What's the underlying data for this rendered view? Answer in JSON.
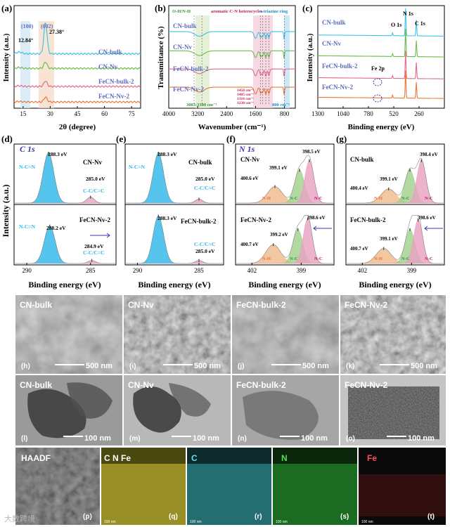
{
  "figure_name": "CN / FeCN characterization figure",
  "colors": {
    "cn_bulk": "#3ec3e6",
    "cn_nv": "#6dbb4a",
    "fecn_bulk_2": "#e06a8d",
    "fecn_nv_2": "#e8773a",
    "label_blue": "#5b6bbd",
    "peak_cyan": "#2cb6e8",
    "peak_pink": "#e8a0c0",
    "peak_green": "#9fd08a",
    "peak_orange": "#f1b98c"
  },
  "panel_a": {
    "letter": "(a)",
    "peak_labels": [
      "(100)",
      "(002)",
      "12.84°",
      "27.38°"
    ],
    "legend": [
      "CN-bulk",
      "CN-Nv",
      "FeCN-bulk-2",
      "FeCN-Nv-2"
    ]
  },
  "panel_b": {
    "letter": "(b)",
    "region_labels": [
      "O-H/N-H",
      "aromatic C-N heterocycles",
      "s-triazine ring"
    ],
    "band_notes": [
      "1458 cm⁻¹",
      "1405 cm⁻¹",
      "1316 cm⁻¹",
      "1230 cm⁻¹"
    ],
    "range_note": "3083-3300 cm⁻¹",
    "ring_note": "800 cm⁻¹",
    "legend": [
      "CN-bulk",
      "CN-Nv",
      "FeCN-bulk-2",
      "FeCN-Nv-2"
    ]
  },
  "panel_c": {
    "letter": "(c)",
    "peak_labels": [
      "N 1s",
      "O 1s",
      "C 1s",
      "Fe 2p"
    ],
    "legend": [
      "CN-bulk",
      "CN-Nv",
      "FeCN-bulk-2",
      "FeCN-Nv-2"
    ]
  },
  "panel_d": {
    "letter": "(d)",
    "core": "C 1s",
    "top": {
      "sample": "CN-Nv",
      "peak1": "288.3 eV",
      "peak2": "285.0 eV",
      "assign1": "N-C=N",
      "assign2": "C-C/C=C"
    },
    "bottom": {
      "sample": "FeCN-Nv-2",
      "peak1": "288.2 eV",
      "peak2": "284.9 eV",
      "assign1": "N-C=N",
      "assign2": "C-C/C=C"
    }
  },
  "panel_e": {
    "letter": "(e)",
    "top": {
      "sample": "CN-bulk",
      "peak1": "288.3 eV",
      "peak2": "285.0 eV",
      "assign1": "N-C=N",
      "assign2": "C-C/C=C"
    },
    "bottom": {
      "sample": "FeCN-bulk-2",
      "peak1": "288.3 eV",
      "peak2": "285.0 eV",
      "assign2": "C-C/C=C"
    }
  },
  "panel_f": {
    "letter": "(f)",
    "core": "N 1s",
    "top": {
      "sample": "CN-Nv",
      "p1": "400.6 eV",
      "p2": "399.1 eV",
      "p3": "398.5 eV",
      "a1": "N-H",
      "a2": "N-C",
      "a3": "N-C"
    },
    "bottom": {
      "sample": "FeCN-Nv-2",
      "p1": "400.7 eV",
      "p2": "399.2 eV",
      "p3": "398.6 eV",
      "a1": "N-H",
      "a2": "N-C",
      "a3": "N-C"
    }
  },
  "panel_g": {
    "letter": "(g)",
    "top": {
      "sample": "CN-bulk",
      "p1": "400.4 eV",
      "p2": "399.1 eV",
      "p3": "398.4 eV",
      "a1": "N-H",
      "a2": "N-C",
      "a3": "N-C"
    },
    "bottom": {
      "sample": "FeCN-bulk-2",
      "p1": "400.7 eV",
      "p2": "399.1 eV",
      "p3": "398.6 eV",
      "a1": "N-H",
      "a2": "N-C",
      "a3": "N-C"
    }
  },
  "xps_axis_label": "Binding energy (eV)",
  "intensity_label": "Intensity (a.u.)",
  "sem_row": {
    "labels": [
      "CN-bulk",
      "CN-Nv",
      "FeCN-bulk-2",
      "FeCN-Nv-2"
    ],
    "letters": [
      "(h)",
      "(i)",
      "(j)",
      "(k)"
    ],
    "scale": "500 nm"
  },
  "tem_row": {
    "labels": [
      "CN-bulk",
      "CN-Nv",
      "FeCN-bulk-2",
      "FeCN-Nv-2"
    ],
    "letters": [
      "(l)",
      "(m)",
      "(n)",
      "(o)"
    ],
    "scale": "100 nm"
  },
  "map_row": {
    "labels": [
      "HAADF",
      "C N Fe",
      "C",
      "N",
      "Fe"
    ],
    "letters": [
      "(p)",
      "(q)",
      "(r)",
      "(s)",
      "(t)"
    ],
    "scale": "100 nm",
    "watermark": "大数跨境"
  },
  "chart_data": [
    {
      "type": "line",
      "panel": "a",
      "xlabel": "2θ (degree)",
      "ylabel": "Intensity (a.u.)",
      "xlim": [
        10,
        80
      ],
      "xticks": [
        15,
        30,
        45,
        60,
        75
      ],
      "series": [
        {
          "name": "CN-bulk",
          "offset": 3.0,
          "peaks": [
            [
              12.84,
              0.1
            ],
            [
              27.38,
              1.8
            ]
          ]
        },
        {
          "name": "CN-Nv",
          "offset": 2.15,
          "peaks": [
            [
              12.84,
              0.05
            ],
            [
              27.38,
              0.38
            ]
          ]
        },
        {
          "name": "FeCN-bulk-2",
          "offset": 1.1,
          "peaks": [
            [
              12.84,
              0.04
            ],
            [
              27.38,
              0.32
            ]
          ]
        },
        {
          "name": "FeCN-Nv-2",
          "offset": 0.2,
          "peaks": [
            [
              12.84,
              0.03
            ],
            [
              27.38,
              0.28
            ]
          ]
        }
      ]
    },
    {
      "type": "line",
      "panel": "b",
      "xlabel": "Wavenumber (cm⁻¹)",
      "ylabel": "Transmittance (%)",
      "xlim": [
        4000,
        500
      ],
      "xticks": [
        4000,
        3200,
        2400,
        1600,
        800
      ],
      "series": [
        {
          "name": "CN-bulk",
          "offset": 3.2
        },
        {
          "name": "CN-Nv",
          "offset": 2.3
        },
        {
          "name": "FeCN-bulk-2",
          "offset": 1.45
        },
        {
          "name": "FeCN-Nv-2",
          "offset": 0.6
        }
      ],
      "bands": [
        3083,
        3300,
        1458,
        1405,
        1316,
        1230,
        800
      ]
    },
    {
      "type": "line",
      "panel": "c",
      "xlabel": "Binding energy (eV)",
      "ylabel": "Intensity (a.u.)",
      "xlim": [
        1300,
        0
      ],
      "xticks": [
        1300,
        1040,
        780,
        520,
        260
      ],
      "series": [
        {
          "name": "CN-bulk",
          "offset": 3.0
        },
        {
          "name": "CN-Nv",
          "offset": 2.1
        },
        {
          "name": "FeCN-bulk-2",
          "offset": 1.15
        },
        {
          "name": "FeCN-Nv-2",
          "offset": 0.3
        }
      ],
      "peaks_eV": {
        "N 1s": 398.5,
        "O 1s": 532,
        "C 1s": 288,
        "Fe 2p": 711
      }
    },
    {
      "type": "area",
      "panel": "d",
      "xlim": [
        291,
        283
      ],
      "xticks": [
        290,
        285
      ],
      "top_peaks": [
        [
          288.3,
          1.0,
          0.85
        ],
        [
          285.0,
          0.12,
          0.6
        ]
      ],
      "bottom_peaks": [
        [
          288.2,
          0.75,
          0.85
        ],
        [
          284.9,
          0.06,
          0.6
        ]
      ]
    },
    {
      "type": "area",
      "panel": "e",
      "xlim": [
        291,
        283
      ],
      "xticks": [
        290,
        285
      ],
      "top_peaks": [
        [
          288.3,
          1.0,
          0.85
        ],
        [
          285.0,
          0.08,
          0.6
        ]
      ],
      "bottom_peaks": [
        [
          288.3,
          0.95,
          0.85
        ],
        [
          285.0,
          0.06,
          0.6
        ]
      ]
    },
    {
      "type": "area",
      "panel": "f",
      "xlim": [
        403,
        397
      ],
      "xticks": [
        402,
        399
      ],
      "top_peaks": [
        [
          400.6,
          0.35,
          0.9
        ],
        [
          399.1,
          0.7,
          0.6
        ],
        [
          398.5,
          0.9,
          0.55
        ]
      ],
      "bottom_peaks": [
        [
          400.7,
          0.4,
          0.9
        ],
        [
          399.2,
          0.72,
          0.6
        ],
        [
          398.6,
          0.95,
          0.55
        ]
      ]
    },
    {
      "type": "area",
      "panel": "g",
      "xlim": [
        403,
        397
      ],
      "xticks": [
        402,
        399
      ],
      "top_peaks": [
        [
          400.4,
          0.3,
          0.9
        ],
        [
          399.1,
          0.7,
          0.6
        ],
        [
          398.4,
          0.9,
          0.55
        ]
      ],
      "bottom_peaks": [
        [
          400.7,
          0.32,
          0.9
        ],
        [
          399.1,
          0.72,
          0.6
        ],
        [
          398.6,
          0.92,
          0.55
        ]
      ]
    }
  ]
}
